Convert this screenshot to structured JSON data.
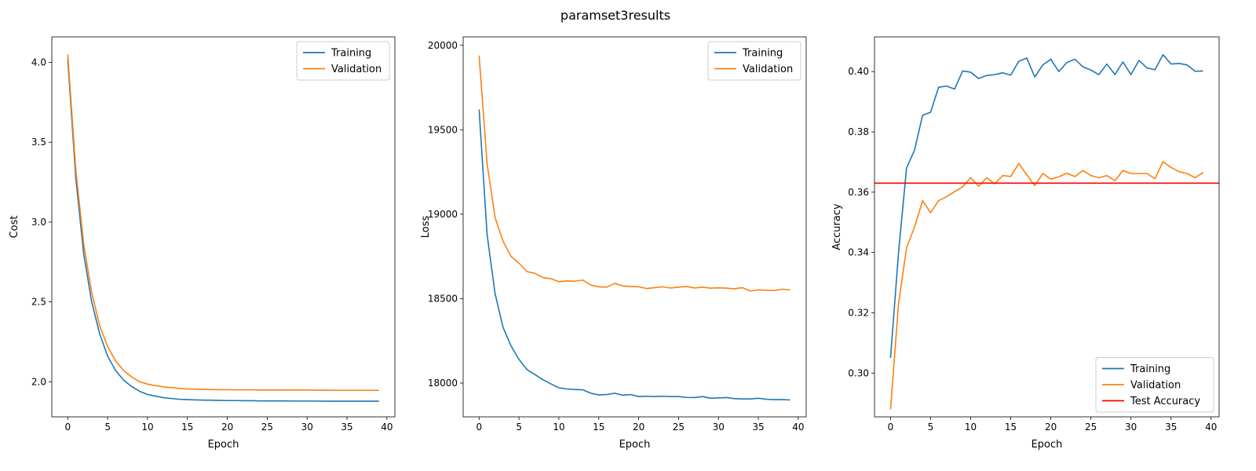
{
  "figure": {
    "suptitle": "paramset3results"
  },
  "colors": {
    "training": "#1f77b4",
    "validation": "#ff7f0e",
    "test": "#ff0000"
  },
  "chart_data": [
    {
      "type": "line",
      "xlabel": "Epoch",
      "ylabel": "Cost",
      "xlim": [
        -2,
        41
      ],
      "ylim": [
        1.78,
        4.16
      ],
      "xticks": [
        0,
        5,
        10,
        15,
        20,
        25,
        30,
        35,
        40
      ],
      "yticks": [
        2.0,
        2.5,
        3.0,
        3.5,
        4.0
      ],
      "ytick_labels": [
        "2.0",
        "2.5",
        "3.0",
        "3.5",
        "4.0"
      ],
      "legend_position": "upper right",
      "series": [
        {
          "name": "Training",
          "color_key": "training",
          "x": [
            0,
            1,
            2,
            3,
            4,
            5,
            6,
            7,
            8,
            9,
            10,
            11,
            12,
            13,
            14,
            15,
            16,
            17,
            18,
            19,
            20,
            21,
            22,
            23,
            24,
            25,
            26,
            27,
            28,
            29,
            30,
            31,
            32,
            33,
            34,
            35,
            36,
            37,
            38,
            39
          ],
          "values": [
            4.02,
            3.28,
            2.8,
            2.5,
            2.3,
            2.16,
            2.07,
            2.01,
            1.97,
            1.94,
            1.92,
            1.91,
            1.9,
            1.895,
            1.89,
            1.888,
            1.886,
            1.885,
            1.884,
            1.883,
            1.882,
            1.882,
            1.881,
            1.881,
            1.88,
            1.88,
            1.88,
            1.88,
            1.879,
            1.879,
            1.879,
            1.879,
            1.878,
            1.878,
            1.878,
            1.878,
            1.878,
            1.878,
            1.878,
            1.878
          ]
        },
        {
          "name": "Validation",
          "color_key": "validation",
          "x": [
            0,
            1,
            2,
            3,
            4,
            5,
            6,
            7,
            8,
            9,
            10,
            11,
            12,
            13,
            14,
            15,
            16,
            17,
            18,
            19,
            20,
            21,
            22,
            23,
            24,
            25,
            26,
            27,
            28,
            29,
            30,
            31,
            32,
            33,
            34,
            35,
            36,
            37,
            38,
            39
          ],
          "values": [
            4.05,
            3.33,
            2.86,
            2.56,
            2.35,
            2.22,
            2.13,
            2.07,
            2.03,
            2.0,
            1.985,
            1.975,
            1.968,
            1.963,
            1.958,
            1.955,
            1.953,
            1.952,
            1.951,
            1.95,
            1.95,
            1.949,
            1.949,
            1.949,
            1.948,
            1.948,
            1.948,
            1.948,
            1.948,
            1.948,
            1.948,
            1.947,
            1.947,
            1.947,
            1.946,
            1.946,
            1.946,
            1.946,
            1.946,
            1.946
          ]
        }
      ]
    },
    {
      "type": "line",
      "xlabel": "Epoch",
      "ylabel": "Loss",
      "xlim": [
        -2,
        41
      ],
      "ylim": [
        17800,
        20050
      ],
      "xticks": [
        0,
        5,
        10,
        15,
        20,
        25,
        30,
        35,
        40
      ],
      "yticks": [
        18000,
        18500,
        19000,
        19500,
        20000
      ],
      "ytick_labels": [
        "18000",
        "18500",
        "19000",
        "19500",
        "20000"
      ],
      "legend_position": "upper right",
      "series": [
        {
          "name": "Training",
          "color_key": "training",
          "x": [
            0,
            1,
            2,
            3,
            4,
            5,
            6,
            7,
            8,
            9,
            10,
            11,
            12,
            13,
            14,
            15,
            16,
            17,
            18,
            19,
            20,
            21,
            22,
            23,
            24,
            25,
            26,
            27,
            28,
            29,
            30,
            31,
            32,
            33,
            34,
            35,
            36,
            37,
            38,
            39
          ],
          "values": [
            19620,
            18880,
            18530,
            18330,
            18220,
            18140,
            18080,
            18050,
            18020,
            17995,
            17972,
            17965,
            17962,
            17960,
            17940,
            17930,
            17932,
            17940,
            17928,
            17932,
            17920,
            17922,
            17920,
            17922,
            17920,
            17920,
            17915,
            17914,
            17920,
            17910,
            17912,
            17914,
            17908,
            17906,
            17906,
            17910,
            17904,
            17902,
            17902,
            17900
          ]
        },
        {
          "name": "Validation",
          "color_key": "validation",
          "x": [
            0,
            1,
            2,
            3,
            4,
            5,
            6,
            7,
            8,
            9,
            10,
            11,
            12,
            13,
            14,
            15,
            16,
            17,
            18,
            19,
            20,
            21,
            22,
            23,
            24,
            25,
            26,
            27,
            28,
            29,
            30,
            31,
            32,
            33,
            34,
            35,
            36,
            37,
            38,
            39
          ],
          "values": [
            19940,
            19300,
            18980,
            18840,
            18750,
            18710,
            18660,
            18650,
            18625,
            18618,
            18600,
            18605,
            18603,
            18610,
            18580,
            18570,
            18568,
            18590,
            18575,
            18572,
            18570,
            18560,
            18565,
            18570,
            18563,
            18568,
            18572,
            18563,
            18568,
            18562,
            18564,
            18562,
            18558,
            18565,
            18545,
            18552,
            18550,
            18548,
            18556,
            18552
          ]
        }
      ]
    },
    {
      "type": "line",
      "xlabel": "Epoch",
      "ylabel": "Accuracy",
      "xlim": [
        -2,
        41
      ],
      "ylim": [
        0.2855,
        0.4115
      ],
      "xticks": [
        0,
        5,
        10,
        15,
        20,
        25,
        30,
        35,
        40
      ],
      "yticks": [
        0.3,
        0.32,
        0.34,
        0.36,
        0.38,
        0.4
      ],
      "ytick_labels": [
        "0.30",
        "0.32",
        "0.34",
        "0.36",
        "0.38",
        "0.40"
      ],
      "legend_position": "lower right",
      "hline": {
        "name": "Test Accuracy",
        "color_key": "test",
        "value": 0.363
      },
      "series": [
        {
          "name": "Training",
          "color_key": "training",
          "x": [
            0,
            1,
            2,
            3,
            4,
            5,
            6,
            7,
            8,
            9,
            10,
            11,
            12,
            13,
            14,
            15,
            16,
            17,
            18,
            19,
            20,
            21,
            22,
            23,
            24,
            25,
            26,
            27,
            28,
            29,
            30,
            31,
            32,
            33,
            34,
            35,
            36,
            37,
            38,
            39
          ],
          "values": [
            0.305,
            0.34,
            0.368,
            0.374,
            0.3855,
            0.3865,
            0.3948,
            0.3952,
            0.3942,
            0.4002,
            0.3998,
            0.3977,
            0.3987,
            0.399,
            0.3996,
            0.3988,
            0.4034,
            0.4045,
            0.3982,
            0.4022,
            0.4041,
            0.4,
            0.403,
            0.4041,
            0.4016,
            0.4005,
            0.399,
            0.4025,
            0.399,
            0.4032,
            0.399,
            0.4037,
            0.4012,
            0.4006,
            0.4056,
            0.4025,
            0.4027,
            0.4022,
            0.4001,
            0.4002
          ]
        },
        {
          "name": "Validation",
          "color_key": "validation",
          "x": [
            0,
            1,
            2,
            3,
            4,
            5,
            6,
            7,
            8,
            9,
            10,
            11,
            12,
            13,
            14,
            15,
            16,
            17,
            18,
            19,
            20,
            21,
            22,
            23,
            24,
            25,
            26,
            27,
            28,
            29,
            30,
            31,
            32,
            33,
            34,
            35,
            36,
            37,
            38,
            39
          ],
          "values": [
            0.288,
            0.323,
            0.3415,
            0.3485,
            0.3572,
            0.3532,
            0.3572,
            0.3585,
            0.3602,
            0.3618,
            0.3648,
            0.362,
            0.3648,
            0.3628,
            0.3655,
            0.3652,
            0.3695,
            0.3658,
            0.3622,
            0.3662,
            0.3643,
            0.3651,
            0.3663,
            0.3652,
            0.3672,
            0.3655,
            0.3648,
            0.3655,
            0.3638,
            0.3672,
            0.3662,
            0.3662,
            0.3662,
            0.3645,
            0.3701,
            0.3682,
            0.3668,
            0.3662,
            0.3648,
            0.3665
          ]
        }
      ]
    }
  ]
}
